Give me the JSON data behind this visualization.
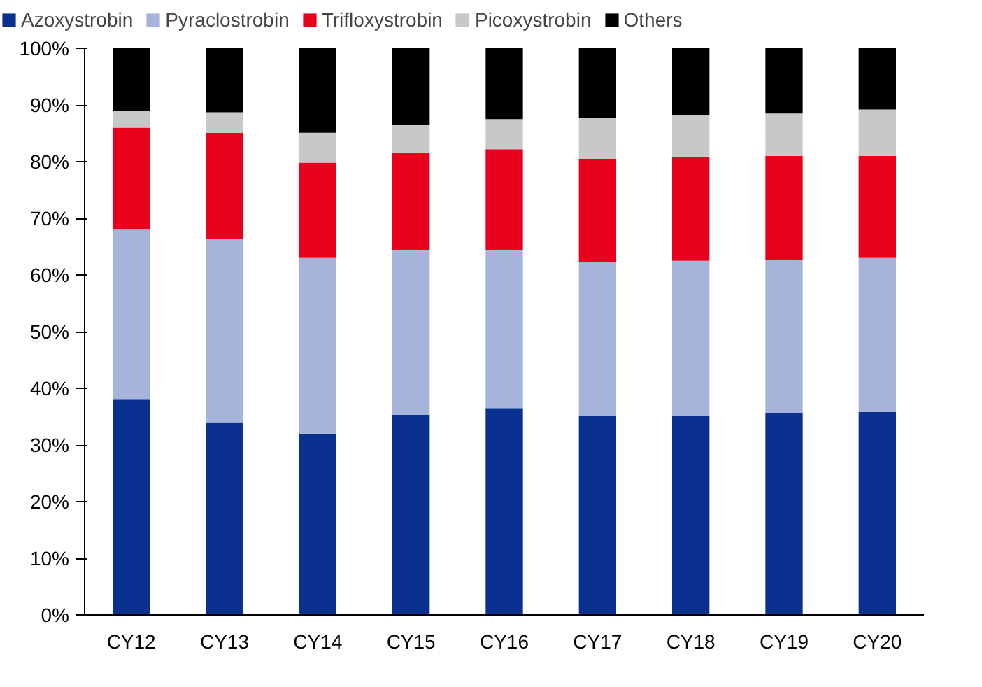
{
  "chart_data": {
    "type": "bar",
    "stacked": true,
    "categories": [
      "CY12",
      "CY13",
      "CY14",
      "CY15",
      "CY16",
      "CY17",
      "CY18",
      "CY19",
      "CY20"
    ],
    "ylim": [
      0,
      100
    ],
    "yticks": [
      {
        "value": 0,
        "label": "0%"
      },
      {
        "value": 10,
        "label": "10%"
      },
      {
        "value": 20,
        "label": "20%"
      },
      {
        "value": 30,
        "label": "30%"
      },
      {
        "value": 40,
        "label": "40%"
      },
      {
        "value": 50,
        "label": "50%"
      },
      {
        "value": 60,
        "label": "60%"
      },
      {
        "value": 70,
        "label": "70%"
      },
      {
        "value": 80,
        "label": "80%"
      },
      {
        "value": 90,
        "label": "90%"
      },
      {
        "value": 100,
        "label": "100%"
      }
    ],
    "grid": false,
    "legend": "top",
    "series": [
      {
        "name": "Azoxystrobin",
        "color": "#0a3190",
        "values": [
          38,
          34,
          32,
          35.3,
          36.5,
          35.1,
          35.1,
          35.6,
          35.8
        ]
      },
      {
        "name": "Pyraclostrobin",
        "color": "#a6b4dc",
        "values": [
          30,
          32.3,
          31,
          29.1,
          27.9,
          27.2,
          27.4,
          27.1,
          27.2
        ]
      },
      {
        "name": "Trifloxystrobin",
        "color": "#e8001c",
        "values": [
          18,
          18.8,
          16.8,
          17.1,
          17.8,
          18.2,
          18.3,
          18.3,
          18
        ]
      },
      {
        "name": "Picoxystrobin",
        "color": "#c8c8c8",
        "values": [
          3,
          3.6,
          5.3,
          5,
          5.3,
          7.2,
          7.4,
          7.5,
          8.2
        ]
      },
      {
        "name": "Others",
        "color": "#000000",
        "values": [
          11,
          11.3,
          14.9,
          13.5,
          12.5,
          12.3,
          11.8,
          11.5,
          10.8
        ]
      }
    ]
  }
}
